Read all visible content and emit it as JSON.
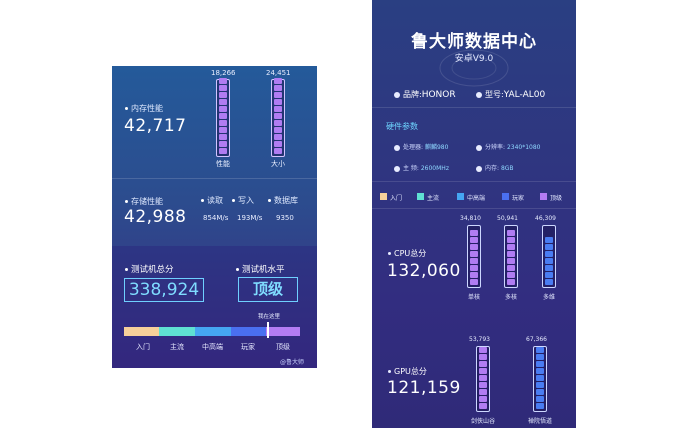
{
  "left": {
    "memory": {
      "label": "内存性能",
      "score": "42,717",
      "bars": [
        {
          "value": "18,266",
          "label": "性能",
          "segs": 11
        },
        {
          "value": "24,451",
          "label": "大小",
          "segs": 11
        }
      ]
    },
    "storage": {
      "label": "存储性能",
      "score": "42,988",
      "metrics": [
        {
          "label": "读取",
          "value": "854M/s"
        },
        {
          "label": "写入",
          "value": "193M/s"
        },
        {
          "label": "数据库",
          "value": "9350"
        }
      ]
    },
    "total": {
      "label": "测试机总分",
      "score": "338,924"
    },
    "level": {
      "label": "测试机水平",
      "value": "顶级"
    },
    "marker": "我在这里",
    "tiers": [
      {
        "label": "入门",
        "color": "#f6d09a"
      },
      {
        "label": "主流",
        "color": "#5fe0d2"
      },
      {
        "label": "中高端",
        "color": "#45a6f2"
      },
      {
        "label": "玩家",
        "color": "#4a6ff0"
      },
      {
        "label": "顶级",
        "color": "#b47cf4"
      }
    ],
    "watermark": "@鲁大师"
  },
  "right": {
    "title": "鲁大师数据中心",
    "version": "安卓V9.0",
    "brand": {
      "label": "品牌:",
      "value": "HONOR"
    },
    "model": {
      "label": "型号:",
      "value": "YAL-AL00"
    },
    "hw_title": "硬件参数",
    "specs": [
      {
        "label": "处理器:",
        "value": "麒麟980"
      },
      {
        "label": "分辨率:",
        "value": "2340*1080"
      },
      {
        "label": "主  频:",
        "value": "2600MHz"
      },
      {
        "label": "内存:",
        "value": "8GB"
      }
    ],
    "legend": [
      {
        "label": "入门",
        "color": "#f6d09a"
      },
      {
        "label": "主流",
        "color": "#5fe0d2"
      },
      {
        "label": "中高端",
        "color": "#45a6f2"
      },
      {
        "label": "玩家",
        "color": "#4a6ff0"
      },
      {
        "label": "顶级",
        "color": "#b47cf4"
      }
    ],
    "cpu": {
      "label": "CPU总分",
      "score": "132,060",
      "bars": [
        {
          "value": "34,810",
          "label": "单核",
          "color": "#b07cf2",
          "segs": 8
        },
        {
          "value": "50,941",
          "label": "多核",
          "color": "#b07cf2",
          "segs": 8
        },
        {
          "value": "46,309",
          "label": "多维",
          "color": "#4a7cf2",
          "segs": 7
        }
      ]
    },
    "gpu": {
      "label": "GPU总分",
      "score": "121,159",
      "bars": [
        {
          "value": "53,793",
          "label": "剑侠山谷",
          "color": "#b07cf2",
          "segs": 9
        },
        {
          "value": "67,366",
          "label": "禅院悟道",
          "color": "#4a7cf2",
          "segs": 9
        }
      ]
    }
  }
}
